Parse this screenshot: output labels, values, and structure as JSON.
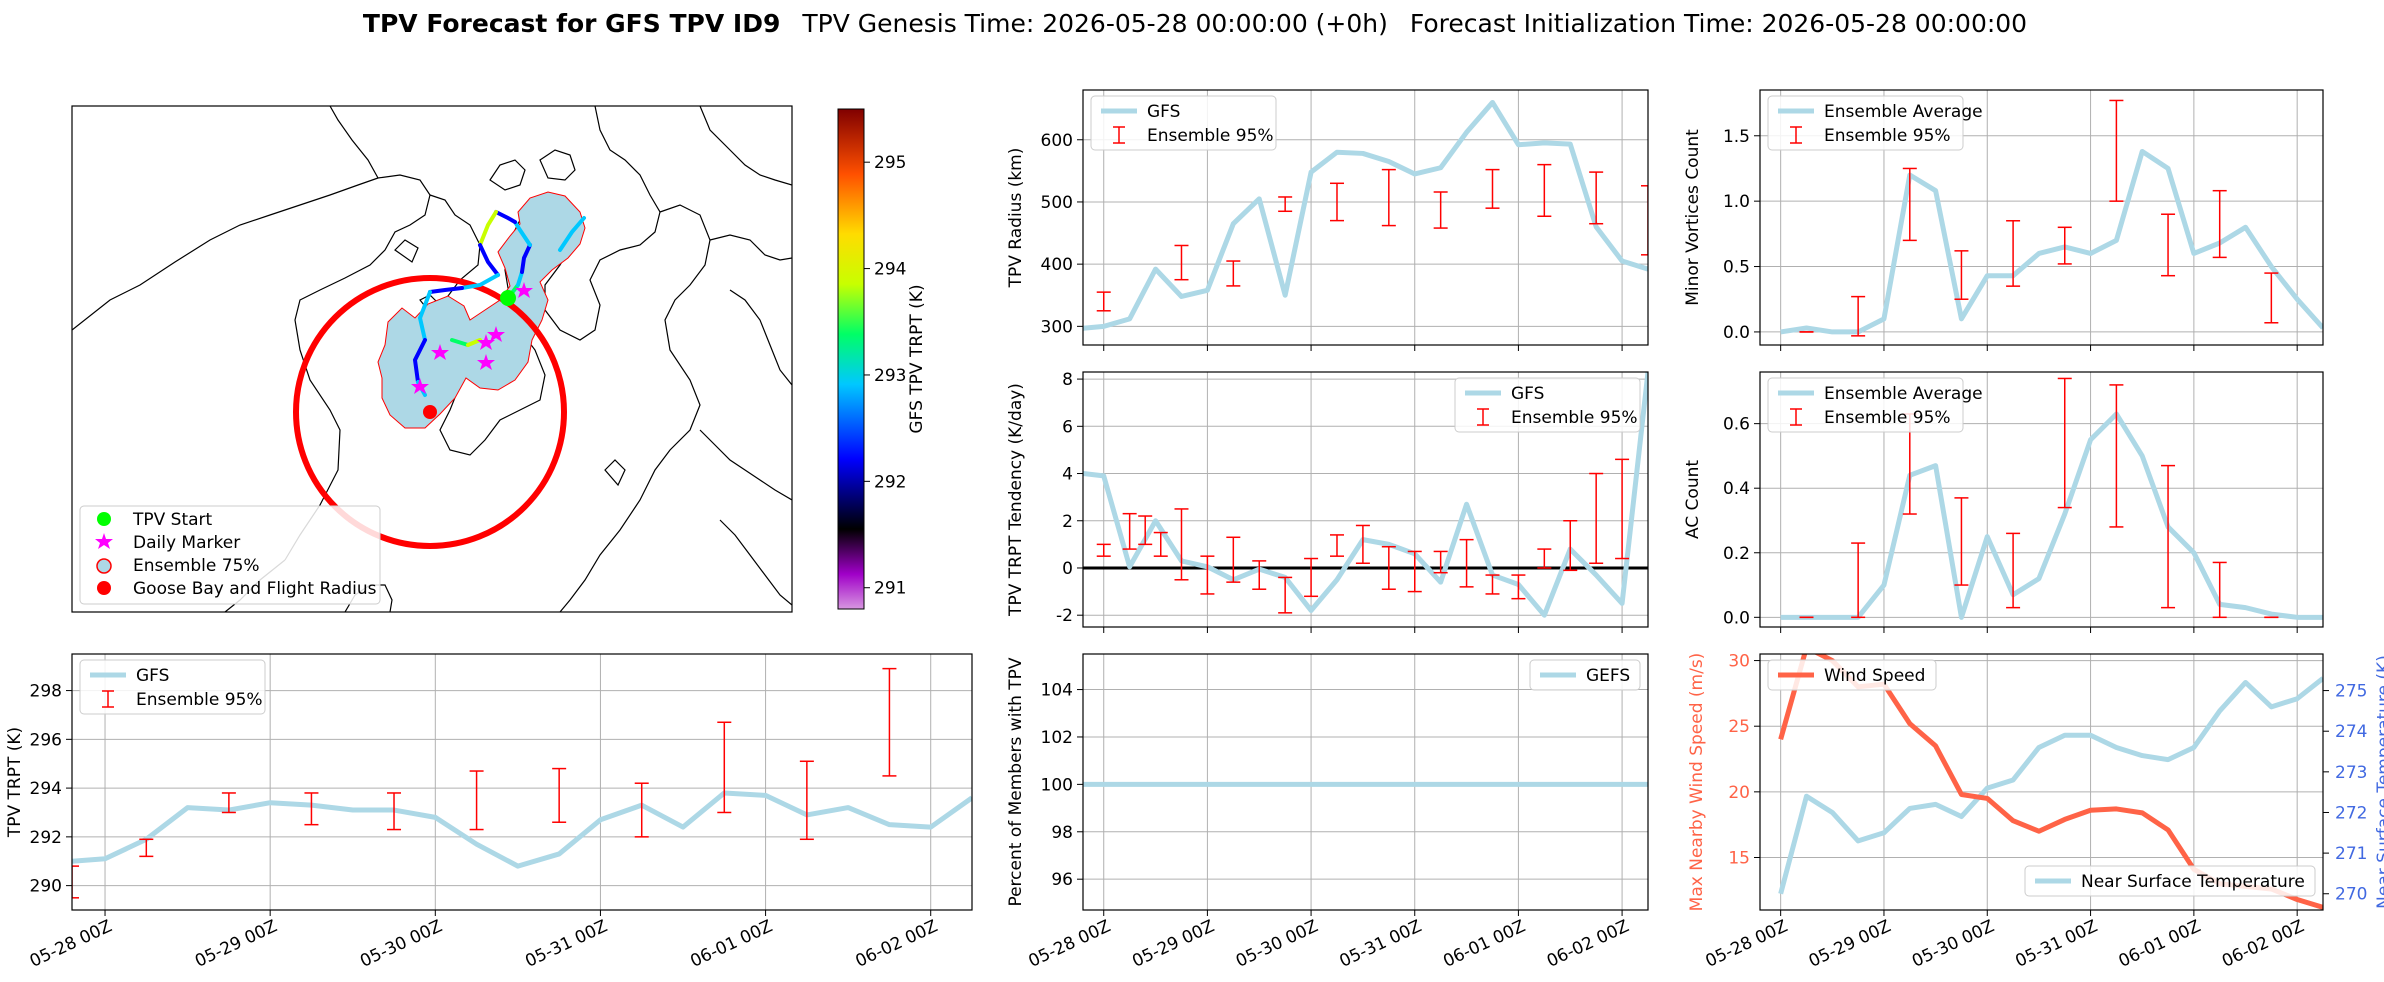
{
  "title": {
    "bold": "TPV Forecast for GFS TPV ID9",
    "genesis": "TPV Genesis Time: 2026-05-28 00:00:00 (+0h)",
    "init": "Forecast Initialization Time: 2026-05-28 00:00:00"
  },
  "colors": {
    "gfs_line": "#add8e6",
    "ensemble_err": "#ff0000",
    "wind": "#ff6347",
    "temp_axis": "#4169e1",
    "goose_bay": "#ff0000",
    "tpv_start": "#00ff00",
    "daily_marker": "#ff00ff",
    "ensemble75_fill": "#add8e6",
    "ensemble75_edge": "#ff0000"
  },
  "date_ticks": [
    "05-28 00Z",
    "05-29 00Z",
    "05-30 00Z",
    "05-31 00Z",
    "06-01 00Z",
    "06-02 00Z"
  ],
  "map": {
    "legend": [
      "TPV Start",
      "Daily Marker",
      "Ensemble 75%",
      "Goose Bay and Flight Radius"
    ],
    "colorbar": {
      "label": "GFS TPV TRPT (K)",
      "min": 290.8,
      "max": 295.5,
      "ticks": [
        291,
        292,
        293,
        294,
        295
      ]
    }
  },
  "chart_data": [
    {
      "id": "radius",
      "type": "line",
      "ylabel": "TPV Radius (km)",
      "ylim": [
        270,
        680
      ],
      "yticks": [
        300,
        400,
        500,
        600
      ],
      "legend": "top-left",
      "series_names": [
        "GFS",
        "Ensemble 95%"
      ],
      "x": [
        -0.2,
        0,
        0.25,
        0.5,
        0.75,
        1,
        1.25,
        1.5,
        1.75,
        2,
        2.25,
        2.5,
        2.75,
        3,
        3.25,
        3.5,
        3.75,
        4,
        4.25,
        4.5,
        4.75,
        5,
        5.25
      ],
      "y": [
        297,
        300,
        312,
        392,
        348,
        358,
        465,
        505,
        350,
        548,
        580,
        578,
        565,
        545,
        555,
        612,
        660,
        592,
        595,
        593,
        460,
        405,
        392
      ],
      "err": [
        [
          0,
          325,
          355
        ],
        [
          0.75,
          375,
          430
        ],
        [
          1.25,
          365,
          405
        ],
        [
          1.75,
          485,
          508
        ],
        [
          2.25,
          470,
          530
        ],
        [
          2.75,
          462,
          552
        ],
        [
          3.25,
          458,
          516
        ],
        [
          3.75,
          490,
          552
        ],
        [
          4.25,
          477,
          560
        ],
        [
          4.75,
          465,
          548
        ],
        [
          5.25,
          415,
          526
        ]
      ]
    },
    {
      "id": "minor",
      "type": "line",
      "ylabel": "Minor Vortices Count",
      "ylim": [
        -0.1,
        1.85
      ],
      "yticks": [
        0,
        0.5,
        1,
        1.5
      ],
      "ytick_labels": [
        "0.0",
        "0.5",
        "1.0",
        "1.5"
      ],
      "legend": "top-left",
      "series_names": [
        "Ensemble Average",
        "Ensemble 95%"
      ],
      "x": [
        0,
        0.25,
        0.5,
        0.75,
        1,
        1.25,
        1.5,
        1.75,
        2,
        2.25,
        2.5,
        2.75,
        3,
        3.25,
        3.5,
        3.75,
        4,
        4.25,
        4.5,
        4.75,
        5,
        5.25
      ],
      "y": [
        0,
        0.03,
        0,
        0,
        0.1,
        1.2,
        1.08,
        0.1,
        0.43,
        0.43,
        0.6,
        0.65,
        0.6,
        0.7,
        1.38,
        1.25,
        0.6,
        0.68,
        0.8,
        0.5,
        0.25,
        0.03
      ],
      "err": [
        [
          0.25,
          0,
          0
        ],
        [
          0.75,
          -0.03,
          0.27
        ],
        [
          1.25,
          0.7,
          1.25
        ],
        [
          1.75,
          0.25,
          0.62
        ],
        [
          2.25,
          0.35,
          0.85
        ],
        [
          2.75,
          0.52,
          0.8
        ],
        [
          3.25,
          1.0,
          1.77
        ],
        [
          3.75,
          0.43,
          0.9
        ],
        [
          4.25,
          0.57,
          1.08
        ],
        [
          4.75,
          0.07,
          0.45
        ]
      ]
    },
    {
      "id": "trpt_tend",
      "type": "line",
      "ylabel": "TPV TRPT Tendency (K/day)",
      "ylim": [
        -2.5,
        8.3
      ],
      "yticks": [
        -2,
        0,
        2,
        4,
        6,
        8
      ],
      "zero_line": true,
      "legend": "top-right",
      "series_names": [
        "GFS",
        "Ensemble 95%"
      ],
      "x": [
        -0.2,
        0,
        0.25,
        0.5,
        0.75,
        1,
        1.25,
        1.5,
        1.75,
        2,
        2.25,
        2.5,
        2.75,
        3,
        3.25,
        3.5,
        3.75,
        4,
        4.25,
        4.5,
        4.75,
        5,
        5.25
      ],
      "y": [
        4,
        3.9,
        0.05,
        2.0,
        0.3,
        0.05,
        -0.5,
        -0.05,
        -0.4,
        -1.8,
        -0.5,
        1.2,
        1.0,
        0.6,
        -0.6,
        2.7,
        -0.3,
        -0.7,
        -2.0,
        0.8,
        -0.3,
        -1.5,
        8.3
      ],
      "err": [
        [
          0,
          0.5,
          1
        ],
        [
          0.25,
          0.8,
          2.3
        ],
        [
          0.4,
          1.0,
          2.2
        ],
        [
          0.55,
          0.5,
          1.5
        ],
        [
          0.75,
          -0.5,
          2.5
        ],
        [
          1.0,
          -1.1,
          0.5
        ],
        [
          1.25,
          -0.6,
          1.3
        ],
        [
          1.5,
          -0.9,
          0.3
        ],
        [
          1.75,
          -1.9,
          -0.4
        ],
        [
          2.0,
          -1.2,
          0.4
        ],
        [
          2.25,
          0.5,
          1.4
        ],
        [
          2.5,
          0.2,
          1.8
        ],
        [
          2.75,
          -0.9,
          0.9
        ],
        [
          3.0,
          -1.0,
          0.7
        ],
        [
          3.25,
          -0.2,
          0.7
        ],
        [
          3.5,
          -0.8,
          1.2
        ],
        [
          3.75,
          -1.1,
          -0.3
        ],
        [
          4.0,
          -1.3,
          -0.3
        ],
        [
          4.25,
          0.0,
          0.8
        ],
        [
          4.5,
          -0.1,
          2.0
        ],
        [
          4.75,
          0.2,
          4.0
        ],
        [
          5.0,
          0.4,
          4.6
        ]
      ]
    },
    {
      "id": "ac",
      "type": "line",
      "ylabel": "AC Count",
      "ylim": [
        -0.03,
        0.76
      ],
      "yticks": [
        0,
        0.2,
        0.4,
        0.6
      ],
      "ytick_labels": [
        "0.0",
        "0.2",
        "0.4",
        "0.6"
      ],
      "legend": "top-left",
      "series_names": [
        "Ensemble Average",
        "Ensemble 95%"
      ],
      "x": [
        0,
        0.25,
        0.5,
        0.75,
        1,
        1.25,
        1.5,
        1.75,
        2,
        2.25,
        2.5,
        2.75,
        3,
        3.25,
        3.5,
        3.75,
        4,
        4.25,
        4.5,
        4.75,
        5,
        5.25
      ],
      "y": [
        0,
        0,
        0,
        0,
        0.1,
        0.44,
        0.47,
        0,
        0.25,
        0.07,
        0.12,
        0.32,
        0.55,
        0.63,
        0.5,
        0.28,
        0.2,
        0.04,
        0.03,
        0.01,
        0,
        0
      ],
      "err": [
        [
          0.25,
          0,
          0
        ],
        [
          0.75,
          0,
          0.23
        ],
        [
          1.25,
          0.32,
          0.63
        ],
        [
          1.75,
          0.1,
          0.37
        ],
        [
          2.25,
          0.03,
          0.26
        ],
        [
          2.75,
          0.34,
          0.74
        ],
        [
          3.25,
          0.28,
          0.72
        ],
        [
          3.75,
          0.03,
          0.47
        ],
        [
          4.25,
          0,
          0.17
        ],
        [
          4.75,
          0,
          0
        ]
      ]
    },
    {
      "id": "trpt",
      "type": "line",
      "ylabel": "TPV TRPT (K)",
      "ylim": [
        289,
        299.5
      ],
      "yticks": [
        290,
        292,
        294,
        296,
        298
      ],
      "legend": "top-left",
      "series_names": [
        "GFS",
        "Ensemble 95%"
      ],
      "x": [
        -0.2,
        0,
        0.25,
        0.5,
        0.75,
        1,
        1.25,
        1.5,
        1.75,
        2,
        2.25,
        2.5,
        2.75,
        3,
        3.25,
        3.5,
        3.75,
        4,
        4.25,
        4.5,
        4.75,
        5,
        5.25
      ],
      "y": [
        291,
        291.1,
        291.9,
        293.2,
        293.1,
        293.4,
        293.3,
        293.1,
        293.1,
        292.8,
        291.7,
        290.8,
        291.3,
        292.7,
        293.3,
        292.4,
        293.8,
        293.7,
        292.9,
        293.2,
        292.5,
        292.4,
        293.6
      ],
      "err": [
        [
          -0.2,
          289.5,
          290.8
        ],
        [
          0.25,
          291.2,
          291.9
        ],
        [
          0.75,
          293.0,
          293.8
        ],
        [
          1.25,
          292.5,
          293.8
        ],
        [
          1.75,
          292.3,
          293.8
        ],
        [
          2.25,
          292.3,
          294.7
        ],
        [
          2.75,
          292.6,
          294.8
        ],
        [
          3.25,
          292.0,
          294.2
        ],
        [
          3.75,
          293.0,
          296.7
        ],
        [
          4.25,
          291.9,
          295.1
        ],
        [
          4.75,
          294.5,
          298.9
        ]
      ]
    },
    {
      "id": "percent",
      "type": "line",
      "ylabel": "Percent of Members with TPV",
      "ylim": [
        94.7,
        105.5
      ],
      "yticks": [
        96,
        98,
        100,
        102,
        104
      ],
      "legend": "top-right",
      "series_names": [
        "GEFS"
      ],
      "x": [
        -0.2,
        5.25
      ],
      "y": [
        100,
        100
      ]
    },
    {
      "id": "wind_temp",
      "type": "line",
      "ylabel": "Max Nearby Wind Speed (m/s)",
      "ylabel2": "Near Surface Temperature (K)",
      "ylim": [
        11,
        30.5
      ],
      "yticks": [
        15,
        20,
        25,
        30
      ],
      "ylim2": [
        269.6,
        275.9
      ],
      "yticks2": [
        270,
        271,
        272,
        273,
        274,
        275
      ],
      "series_names": [
        "Wind Speed",
        "Near Surface Temperature"
      ],
      "wind_x": [
        0,
        0.25,
        0.5,
        0.75,
        1,
        1.25,
        1.5,
        1.75,
        2,
        2.25,
        2.5,
        2.75,
        3,
        3.25,
        3.5,
        3.75,
        4,
        4.25,
        4.5,
        4.75,
        5,
        5.25
      ],
      "wind_y": [
        24,
        31,
        30,
        28,
        28.2,
        25.2,
        23.5,
        19.8,
        19.5,
        17.8,
        17,
        17.9,
        18.6,
        18.7,
        18.4,
        17.1,
        14.1,
        13,
        12.8,
        12.6,
        11.8,
        11.2
      ],
      "temp_x": [
        0,
        0.25,
        0.5,
        0.75,
        1,
        1.25,
        1.5,
        1.75,
        2,
        2.25,
        2.5,
        2.75,
        3,
        3.25,
        3.5,
        3.75,
        4,
        4.25,
        4.5,
        4.75,
        5,
        5.25
      ],
      "temp_y": [
        270,
        272.4,
        272,
        271.3,
        271.5,
        272.1,
        272.2,
        271.9,
        272.6,
        272.8,
        273.6,
        273.9,
        273.9,
        273.6,
        273.4,
        273.3,
        273.6,
        274.5,
        275.2,
        274.6,
        274.8,
        275.3
      ]
    }
  ]
}
